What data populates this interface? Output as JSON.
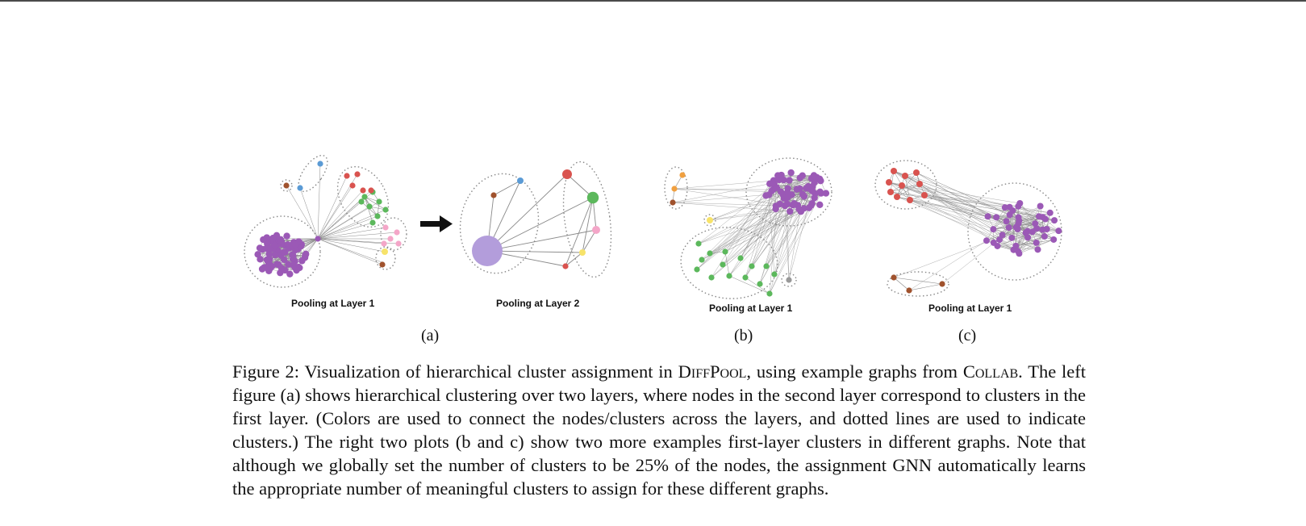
{
  "figure": {
    "panels": [
      {
        "id": "a1",
        "label": "Pooling at Layer 1"
      },
      {
        "id": "a2",
        "label": "Pooling at Layer 2"
      },
      {
        "id": "b",
        "label": "Pooling at Layer 1"
      },
      {
        "id": "c",
        "label": "Pooling at Layer 1"
      }
    ],
    "subfigure_labels": [
      "(a)",
      "(b)",
      "(c)"
    ],
    "colors": {
      "purple": "#9b59b6",
      "purple_light": "#b39ddb",
      "green": "#5cb85c",
      "red": "#d9534f",
      "pink": "#f4a6c8",
      "yellow": "#f7e36a",
      "blue": "#5b9bd5",
      "brown": "#a0522d",
      "orange": "#f0a040",
      "gray": "#999999",
      "edge": "#8a8a8a",
      "arrow": "#111111"
    }
  },
  "caption": {
    "prefix": "Figure 2: Visualization of hierarchical cluster assignment in ",
    "method": "DiffPool",
    "mid1": ", using example graphs from ",
    "dataset": "Collab",
    "rest": ". The left figure (a) shows hierarchical clustering over two layers, where nodes in the second layer correspond to clusters in the first layer. (Colors are used to connect the nodes/clusters across the layers, and dotted lines are used to indicate clusters.) The right two plots (b and c) show two more examples first-layer clusters in different graphs. Note that although we globally set the number of clusters to be 25% of the nodes, the assignment GNN automatically learns the appropriate number of meaningful clusters to assign for these different graphs."
  }
}
